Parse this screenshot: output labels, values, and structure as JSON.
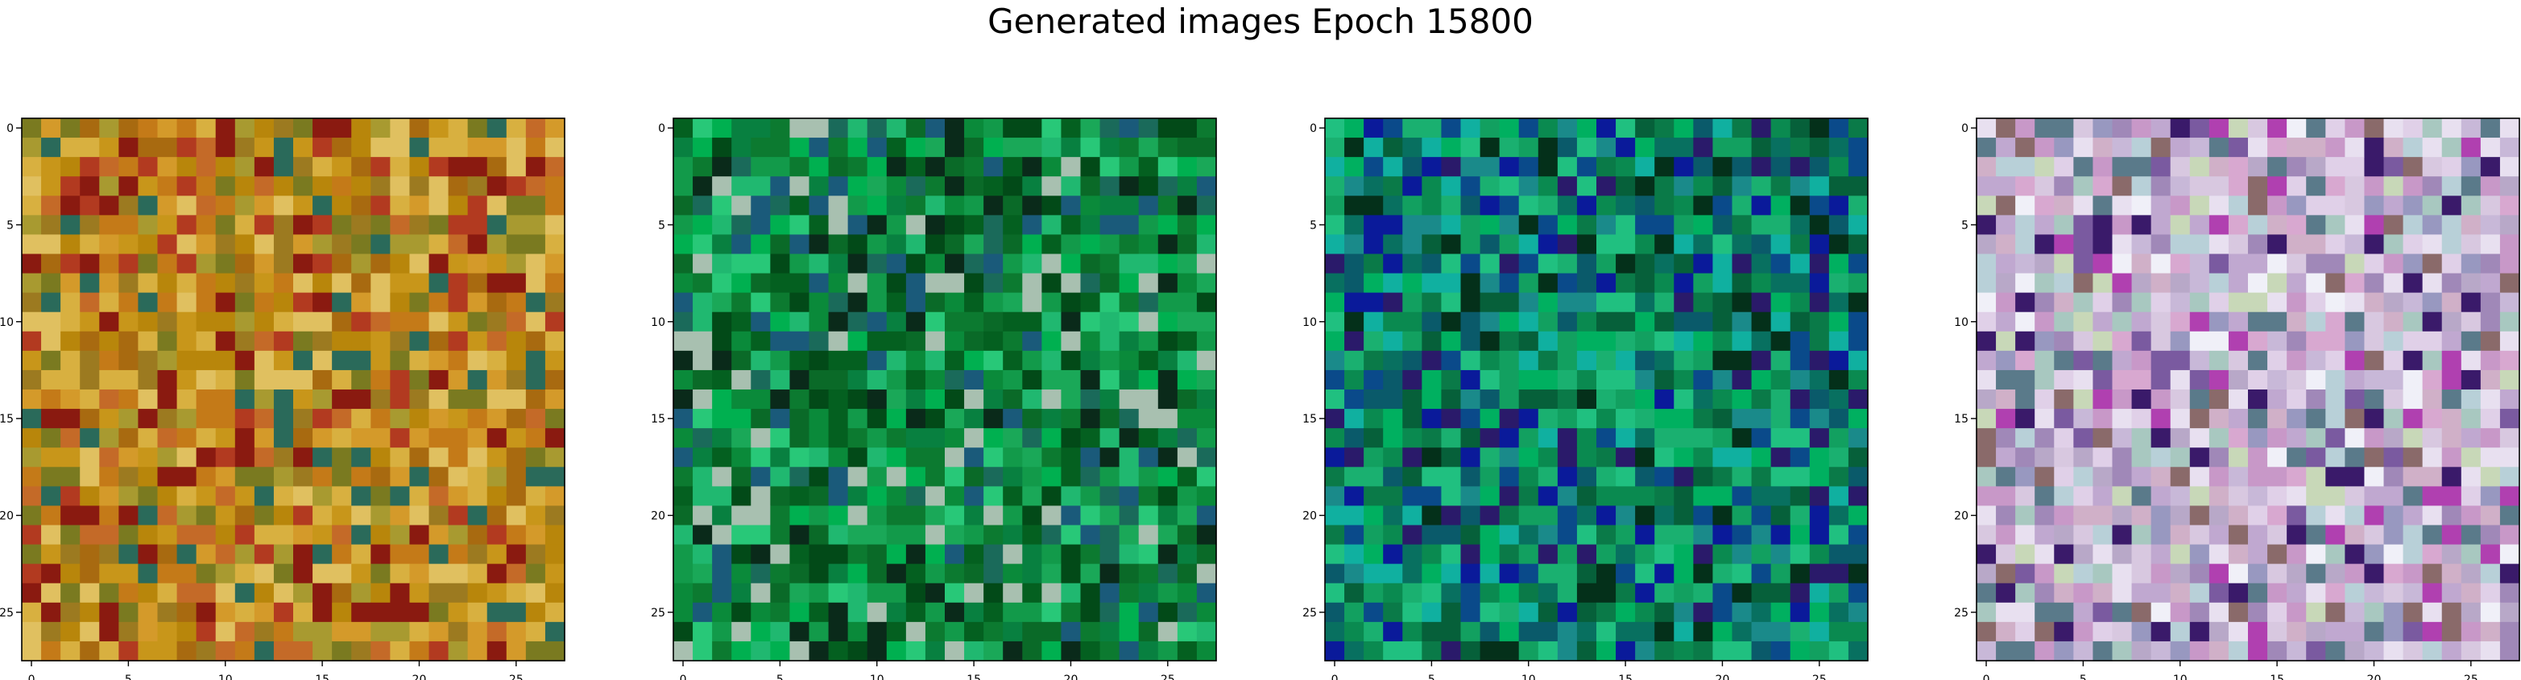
{
  "figure": {
    "title": "Generated images Epoch 15800"
  },
  "chart_data": [
    {
      "type": "heatmap",
      "title": "",
      "xlabel": "",
      "ylabel": "",
      "xlim": [
        -0.5,
        27.5
      ],
      "ylim": [
        27.5,
        -0.5
      ],
      "grid_size": [
        28,
        28
      ],
      "x_ticks": [
        "0",
        "5",
        "10",
        "15",
        "20",
        "25"
      ],
      "y_ticks": [
        "0",
        "5",
        "10",
        "15",
        "20",
        "25"
      ],
      "palette": [
        "#b8860b",
        "#c8961a",
        "#d49a2a",
        "#c47a18",
        "#a86a10",
        "#9c7a20",
        "#d8b040",
        "#c46a28",
        "#b23a20",
        "#8a1a10",
        "#7a7a20",
        "#a89a30",
        "#2a6a5a",
        "#e0c060"
      ]
    },
    {
      "type": "heatmap",
      "title": "",
      "xlabel": "",
      "ylabel": "",
      "xlim": [
        -0.5,
        27.5
      ],
      "ylim": [
        27.5,
        -0.5
      ],
      "grid_size": [
        28,
        28
      ],
      "x_ticks": [
        "0",
        "5",
        "10",
        "15",
        "20",
        "25"
      ],
      "y_ticks": [
        "0",
        "5",
        "10",
        "15",
        "20",
        "25"
      ],
      "palette": [
        "#0a8a3a",
        "#129a4a",
        "#1aa858",
        "#0c7a30",
        "#0a6a28",
        "#00b050",
        "#20b870",
        "#088040",
        "#046020",
        "#024a18",
        "#1a6a5a",
        "#28c878",
        "#0a2a1a",
        "#1a5a7a",
        "#a8c0b0"
      ]
    },
    {
      "type": "heatmap",
      "title": "",
      "xlabel": "",
      "ylabel": "",
      "xlim": [
        -0.5,
        27.5
      ],
      "ylim": [
        27.5,
        -0.5
      ],
      "grid_size": [
        28,
        28
      ],
      "x_ticks": [
        "0",
        "5",
        "10",
        "15",
        "20",
        "25"
      ],
      "y_ticks": [
        "0",
        "5",
        "10",
        "15",
        "20",
        "25"
      ],
      "palette": [
        "#0a8a50",
        "#12a060",
        "#1ab070",
        "#0a7a48",
        "#087060",
        "#00b060",
        "#20c080",
        "#06603a",
        "#1a8a8a",
        "#0a5a6a",
        "#0a4a8a",
        "#10b0a0",
        "#04301a",
        "#2a1a6a",
        "#0a1a9a"
      ]
    },
    {
      "type": "heatmap",
      "title": "",
      "xlabel": "",
      "ylabel": "",
      "xlim": [
        -0.5,
        27.5
      ],
      "ylim": [
        27.5,
        -0.5
      ],
      "grid_size": [
        28,
        28
      ],
      "x_ticks": [
        "0",
        "5",
        "10",
        "15",
        "20",
        "25"
      ],
      "y_ticks": [
        "0",
        "5",
        "10",
        "15",
        "20",
        "25"
      ],
      "palette": [
        "#c8b8d8",
        "#d8c8e0",
        "#b8a8c8",
        "#e0d0e8",
        "#a8c8c0",
        "#c0a8d0",
        "#e8e0f0",
        "#d0b0c8",
        "#9898c0",
        "#b8d0d8",
        "#c898c8",
        "#a088b8",
        "#d8a8d0",
        "#7a5aa0",
        "#3a1a6a",
        "#b040b0",
        "#5a7a8a",
        "#c8d8b8",
        "#f0f0f8",
        "#8a6a6a"
      ]
    }
  ]
}
